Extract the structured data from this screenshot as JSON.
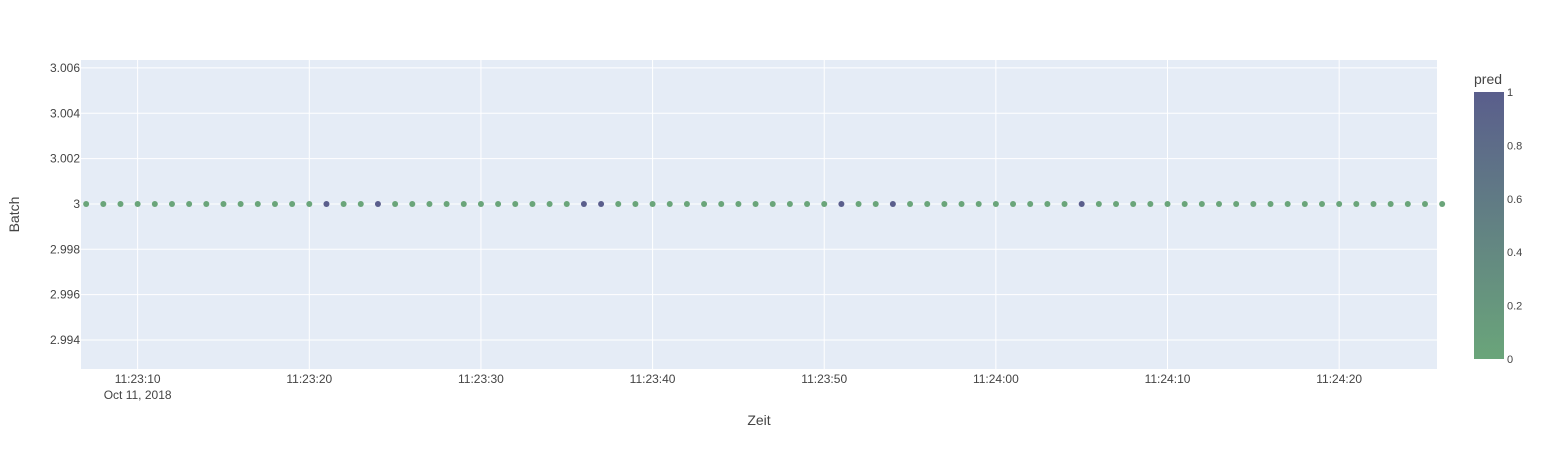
{
  "chart_data": {
    "type": "scatter",
    "title": "",
    "xlabel": "Zeit",
    "ylabel": "Batch",
    "x_start": "2018-10-11T11:23:07",
    "x_step_seconds": 1,
    "x_range": [
      "2018-10-11T11:23:06.7",
      "2018-10-11T11:24:25.7"
    ],
    "y_range": [
      2.99272,
      3.00635
    ],
    "y_ticks": [
      2.994,
      2.996,
      2.998,
      3,
      3.002,
      3.004,
      3.006
    ],
    "y_tick_labels": [
      "2.994",
      "2.996",
      "2.998",
      "3",
      "3.002",
      "3.004",
      "3.006"
    ],
    "x_ticks": [
      "2018-10-11T11:23:10",
      "2018-10-11T11:23:20",
      "2018-10-11T11:23:30",
      "2018-10-11T11:23:40",
      "2018-10-11T11:23:50",
      "2018-10-11T11:24:00",
      "2018-10-11T11:24:10",
      "2018-10-11T11:24:20"
    ],
    "x_tick_labels": [
      "11:23:10",
      "11:23:20",
      "11:23:30",
      "11:23:40",
      "11:23:50",
      "11:24:00",
      "11:24:10",
      "11:24:20"
    ],
    "x_date_label": "Oct 11, 2018",
    "y_value": 3,
    "pred": [
      0,
      0,
      0,
      0,
      0,
      0,
      0,
      0,
      0,
      0,
      0,
      0,
      0,
      0,
      1,
      0,
      0,
      1,
      0,
      0,
      0,
      0,
      0,
      0,
      0,
      0,
      0,
      0,
      0,
      1,
      1,
      0,
      0,
      0,
      0,
      0,
      0,
      0,
      0,
      0,
      0,
      0,
      0,
      0,
      1,
      0,
      0,
      1,
      0,
      0,
      0,
      0,
      0,
      0,
      0,
      0,
      0,
      0,
      1,
      0,
      0,
      0,
      0,
      0,
      0,
      0,
      0,
      0,
      0,
      0,
      0,
      0,
      0,
      0,
      0,
      0,
      0,
      0,
      0,
      0
    ],
    "colorbar": {
      "title": "pred",
      "range": [
        0,
        1
      ],
      "tick_values": [
        0,
        0.2,
        0.4,
        0.6,
        0.8,
        1
      ],
      "tick_labels": [
        "0",
        "0.2",
        "0.4",
        "0.6",
        "0.8",
        "1"
      ],
      "color_low": "#6aa57a",
      "color_high": "#5a5e8c"
    },
    "grid": true,
    "legend": "colorbar-right",
    "plot_bg": "#e5ecf6",
    "grid_color": "#ffffff"
  }
}
